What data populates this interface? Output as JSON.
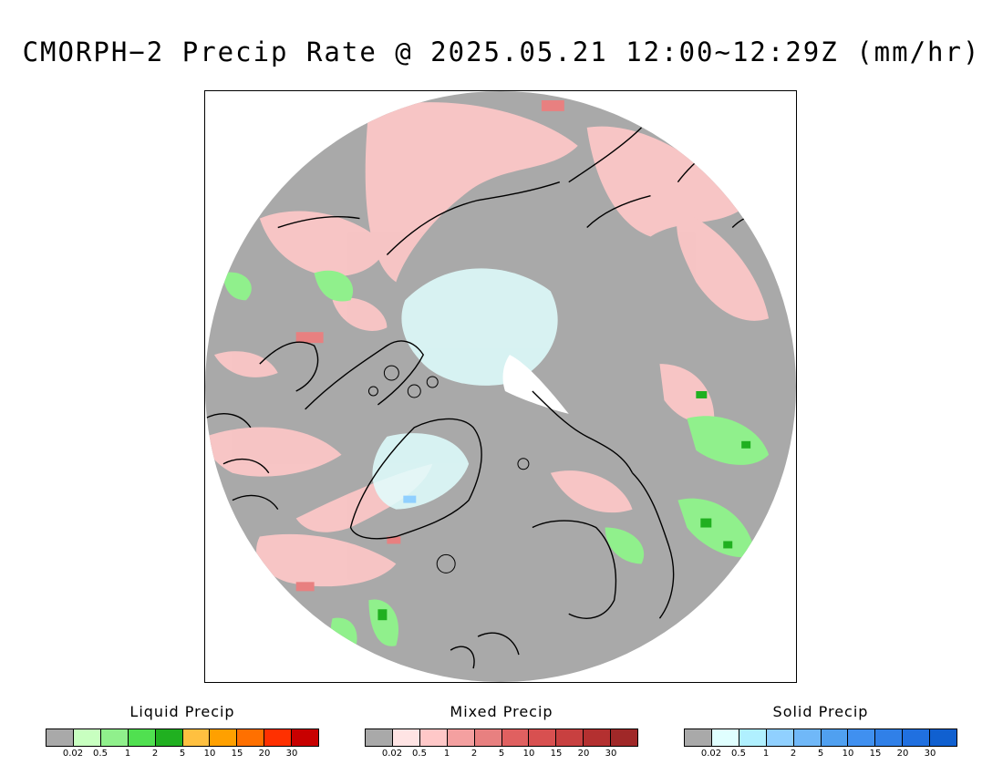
{
  "title": "CMORPH−2 Precip Rate @ 2025.05.21 12:00~12:29Z (mm/hr)",
  "map": {
    "projection": "north-polar-stereographic",
    "background_no_precip": "#a9a9a9",
    "outside_color": "#ffffff",
    "coastline_color": "#000000"
  },
  "legends": [
    {
      "id": "liquid",
      "title": "Liquid Precip",
      "ticks": [
        "0.02",
        "0.5",
        "1",
        "2",
        "5",
        "10",
        "15",
        "20",
        "30"
      ],
      "colors": [
        "#a9a9a9",
        "#c8ffc0",
        "#90f08c",
        "#50e050",
        "#20b020",
        "#ffc040",
        "#ffa000",
        "#ff7000",
        "#ff3000",
        "#c80000"
      ]
    },
    {
      "id": "mixed",
      "title": "Mixed Precip",
      "ticks": [
        "0.02",
        "0.5",
        "1",
        "2",
        "5",
        "10",
        "15",
        "20",
        "30"
      ],
      "colors": [
        "#a9a9a9",
        "#ffe4e4",
        "#ffc8c8",
        "#f4a0a0",
        "#e88080",
        "#e06060",
        "#d85050",
        "#c84040",
        "#b43030",
        "#a02828"
      ]
    },
    {
      "id": "solid",
      "title": "Solid Precip",
      "ticks": [
        "0.02",
        "0.5",
        "1",
        "2",
        "5",
        "10",
        "15",
        "20",
        "30"
      ],
      "colors": [
        "#a9a9a9",
        "#e0ffff",
        "#b0f0ff",
        "#90d0ff",
        "#70b8f8",
        "#50a0f0",
        "#4090f0",
        "#3080e8",
        "#2070e0",
        "#1060d0"
      ]
    }
  ]
}
